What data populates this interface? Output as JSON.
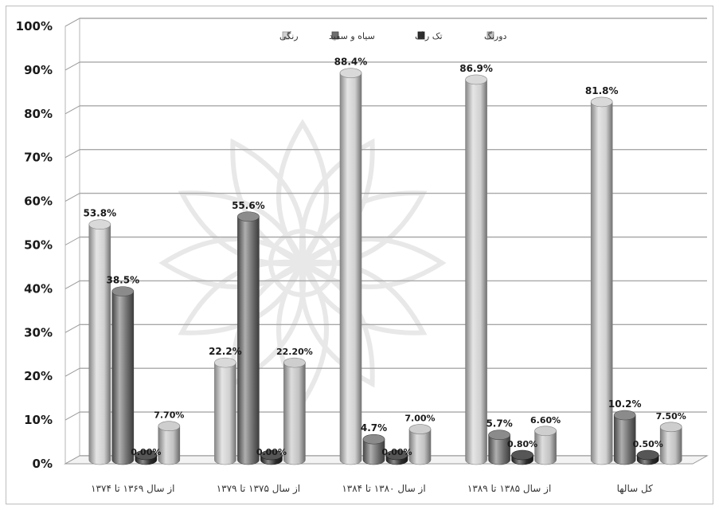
{
  "chart_data": {
    "type": "bar",
    "title": "",
    "xlabel": "",
    "ylabel": "",
    "ylim": [
      0,
      100
    ],
    "yticks": [
      0,
      10,
      20,
      30,
      40,
      50,
      60,
      70,
      80,
      90,
      100
    ],
    "ytick_labels": [
      "0%",
      "10%",
      "20%",
      "30%",
      "40%",
      "50%",
      "60%",
      "70%",
      "80%",
      "90%",
      "100%"
    ],
    "grid": true,
    "legend_position": "top",
    "categories": [
      "از سال ۱۳۶۹ تا ۱۳۷۴",
      "از سال ۱۳۷۵ تا ۱۳۷۹",
      "از سال ۱۳۸۰ تا ۱۳۸۴",
      "از سال ۱۳۸۵ تا ۱۳۸۹",
      "کل سالها"
    ],
    "series": [
      {
        "name": "رنگی",
        "color": "#d0d0d0",
        "values": [
          53.8,
          22.2,
          88.4,
          86.9,
          81.8
        ],
        "labels": [
          "53.8%",
          "22.2%",
          "88.4%",
          "86.9%",
          "81.8%"
        ]
      },
      {
        "name": "سیاه و سفید",
        "color": "#6e6e6e",
        "values": [
          38.5,
          55.6,
          4.7,
          5.7,
          10.2
        ],
        "labels": [
          "38.5%",
          "55.6%",
          "4.7%",
          "5.7%",
          "10.2%"
        ]
      },
      {
        "name": "تک رنگ",
        "color": "#2c2c2c",
        "values": [
          0,
          0,
          0,
          0.8,
          0.5
        ],
        "labels": [
          "0.00%",
          "0.00%",
          "0.00%",
          "0.80%",
          "0.50%"
        ]
      },
      {
        "name": "دورنگ",
        "color": "#c2c2c2",
        "values": [
          7.7,
          22.2,
          7.0,
          6.6,
          7.5
        ],
        "labels": [
          "7.70%",
          "22.20%",
          "7.00%",
          "6.60%",
          "7.50%"
        ]
      }
    ]
  }
}
